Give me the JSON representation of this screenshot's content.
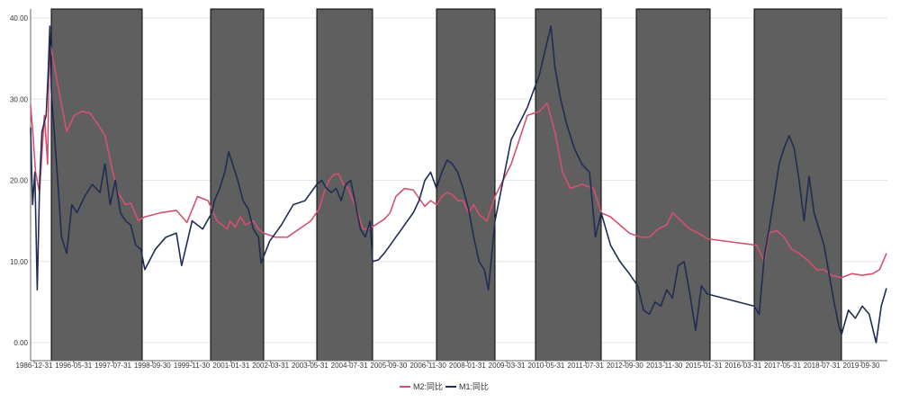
{
  "chart_data": {
    "type": "line",
    "title": "",
    "xlabel": "",
    "ylabel": "",
    "ylim": [
      0,
      40
    ],
    "yticks": [
      "0.00",
      "10.00",
      "20.00",
      "30.00",
      "40.00"
    ],
    "xticks": [
      "1986-12-31",
      "1996-05-31",
      "1997-07-31",
      "1998-09-30",
      "1999-11-30",
      "2001-01-31",
      "2002-03-31",
      "2003-05-31",
      "2004-07-31",
      "2005-09-30",
      "2006-11-30",
      "2008-01-31",
      "2009-03-31",
      "2010-05-31",
      "2011-07-31",
      "2012-09-30",
      "2013-11-30",
      "2015-01-31",
      "2016-03-31",
      "2017-05-31",
      "2018-07-31",
      "2019-09-30"
    ],
    "grid": true,
    "legend_position": "bottom",
    "shaded_periods": [
      {
        "start": 1995.3,
        "end": 1998.85
      },
      {
        "start": 2000.15,
        "end": 2002.2
      },
      {
        "start": 2003.1,
        "end": 2005.4
      },
      {
        "start": 2007.6,
        "end": 2009.8
      },
      {
        "start": 2010.3,
        "end": 2012.0
      },
      {
        "start": 2012.75,
        "end": 2015.3
      },
      {
        "start": 2015.4,
        "end": 2018.9
      }
    ],
    "series": [
      {
        "name": "M2:同比",
        "color": "#d4516e",
        "points": [
          [
            1986.9,
            29.3
          ],
          [
            1987.9,
            25.5
          ],
          [
            1988.9,
            21.0
          ],
          [
            1990.5,
            18.5
          ],
          [
            1992.5,
            28.0
          ],
          [
            1993.8,
            22.0
          ],
          [
            1994.4,
            34.0
          ],
          [
            1994.7,
            37.0
          ],
          [
            1995.3,
            36.0
          ],
          [
            1995.6,
            31.0
          ],
          [
            1995.9,
            26.0
          ],
          [
            1996.2,
            28.0
          ],
          [
            1996.5,
            28.5
          ],
          [
            1996.8,
            28.3
          ],
          [
            1997.1,
            27.0
          ],
          [
            1997.4,
            25.5
          ],
          [
            1997.7,
            21.0
          ],
          [
            1997.9,
            18.5
          ],
          [
            1998.2,
            17.0
          ],
          [
            1998.4,
            17.2
          ],
          [
            1998.7,
            15.0
          ],
          [
            1998.9,
            15.5
          ],
          [
            1999.2,
            16.0
          ],
          [
            1999.5,
            16.3
          ],
          [
            1999.7,
            14.8
          ],
          [
            1999.9,
            18.0
          ],
          [
            2000.1,
            17.5
          ],
          [
            2000.4,
            15.0
          ],
          [
            2000.6,
            14.5
          ],
          [
            2000.8,
            14.0
          ],
          [
            2000.9,
            15.0
          ],
          [
            2001.1,
            14.2
          ],
          [
            2001.3,
            15.5
          ],
          [
            2001.5,
            14.5
          ],
          [
            2001.8,
            15.0
          ],
          [
            2002.0,
            14.0
          ],
          [
            2002.2,
            13.5
          ],
          [
            2002.4,
            13.0
          ],
          [
            2002.6,
            13.0
          ],
          [
            2002.8,
            14.0
          ],
          [
            2003.0,
            15.0
          ],
          [
            2003.2,
            16.5
          ],
          [
            2003.4,
            18.5
          ],
          [
            2003.6,
            20.0
          ],
          [
            2003.8,
            20.7
          ],
          [
            2004.0,
            20.8
          ],
          [
            2004.2,
            19.5
          ],
          [
            2004.4,
            19.0
          ],
          [
            2004.6,
            17.5
          ],
          [
            2004.8,
            16.0
          ],
          [
            2005.0,
            14.0
          ],
          [
            2005.2,
            14.0
          ],
          [
            2005.5,
            14.5
          ],
          [
            2005.8,
            15.2
          ],
          [
            2006.0,
            16.0
          ],
          [
            2006.2,
            18.0
          ],
          [
            2006.5,
            19.0
          ],
          [
            2006.8,
            18.8
          ],
          [
            2007.0,
            17.8
          ],
          [
            2007.2,
            16.8
          ],
          [
            2007.4,
            17.5
          ],
          [
            2007.6,
            17.0
          ],
          [
            2007.8,
            18.0
          ],
          [
            2008.0,
            18.5
          ],
          [
            2008.2,
            18.2
          ],
          [
            2008.4,
            17.5
          ],
          [
            2008.6,
            17.5
          ],
          [
            2008.8,
            16.0
          ],
          [
            2009.0,
            17.0
          ],
          [
            2009.2,
            15.8
          ],
          [
            2009.5,
            15.0
          ],
          [
            2009.8,
            18.0
          ],
          [
            2010.0,
            22.0
          ],
          [
            2010.2,
            28.0
          ],
          [
            2010.4,
            28.5
          ],
          [
            2010.6,
            29.5
          ],
          [
            2010.8,
            26.0
          ],
          [
            2011.0,
            21.0
          ],
          [
            2011.2,
            19.0
          ],
          [
            2011.5,
            19.5
          ],
          [
            2011.8,
            19.0
          ],
          [
            2012.0,
            16.0
          ],
          [
            2012.2,
            15.5
          ],
          [
            2012.4,
            14.5
          ],
          [
            2012.6,
            13.5
          ],
          [
            2012.9,
            13.0
          ],
          [
            2013.2,
            13.0
          ],
          [
            2013.5,
            14.0
          ],
          [
            2013.8,
            14.5
          ],
          [
            2014.0,
            16.0
          ],
          [
            2014.3,
            15.0
          ],
          [
            2014.6,
            14.0
          ],
          [
            2014.9,
            13.5
          ],
          [
            2015.2,
            12.8
          ],
          [
            2015.5,
            12.0
          ],
          [
            2015.8,
            10.0
          ],
          [
            2016.0,
            13.5
          ],
          [
            2016.3,
            13.8
          ],
          [
            2016.6,
            13.0
          ],
          [
            2016.9,
            11.5
          ],
          [
            2017.2,
            11.0
          ],
          [
            2017.6,
            10.0
          ],
          [
            2017.9,
            9.0
          ],
          [
            2018.2,
            9.0
          ],
          [
            2018.5,
            8.3
          ],
          [
            2018.9,
            8.0
          ],
          [
            2019.2,
            8.5
          ],
          [
            2019.5,
            8.3
          ],
          [
            2019.8,
            8.5
          ],
          [
            2020.0,
            9.0
          ],
          [
            2020.2,
            11.0
          ]
        ]
      },
      {
        "name": "M1:同比",
        "color": "#1f2d55",
        "points": [
          [
            1986.9,
            26.5
          ],
          [
            1987.7,
            17.0
          ],
          [
            1988.6,
            21.0
          ],
          [
            1989.6,
            6.5
          ],
          [
            1990.6,
            20.0
          ],
          [
            1991.5,
            26.0
          ],
          [
            1993.2,
            28.0
          ],
          [
            1994.0,
            33.0
          ],
          [
            1994.7,
            39.0
          ],
          [
            1995.0,
            34.0
          ],
          [
            1995.3,
            31.0
          ],
          [
            1995.55,
            20.0
          ],
          [
            1995.7,
            13.0
          ],
          [
            1995.9,
            11.0
          ],
          [
            1996.1,
            17.0
          ],
          [
            1996.3,
            16.0
          ],
          [
            1996.6,
            18.0
          ],
          [
            1996.9,
            19.5
          ],
          [
            1997.2,
            18.5
          ],
          [
            1997.4,
            22.0
          ],
          [
            1997.6,
            17.0
          ],
          [
            1997.8,
            20.0
          ],
          [
            1998.0,
            16.0
          ],
          [
            1998.2,
            15.0
          ],
          [
            1998.4,
            14.5
          ],
          [
            1998.6,
            12.0
          ],
          [
            1998.8,
            11.5
          ],
          [
            1998.9,
            9.0
          ],
          [
            1999.1,
            11.5
          ],
          [
            1999.3,
            13.0
          ],
          [
            1999.5,
            13.5
          ],
          [
            1999.6,
            9.5
          ],
          [
            1999.8,
            15.0
          ],
          [
            2000.0,
            14.0
          ],
          [
            2000.2,
            16.0
          ],
          [
            2000.3,
            17.5
          ],
          [
            2000.5,
            19.0
          ],
          [
            2000.7,
            21.0
          ],
          [
            2000.85,
            23.5
          ],
          [
            2001.0,
            22.0
          ],
          [
            2001.2,
            20.0
          ],
          [
            2001.4,
            17.5
          ],
          [
            2001.6,
            16.5
          ],
          [
            2001.8,
            14.0
          ],
          [
            2002.0,
            13.0
          ],
          [
            2002.1,
            9.8
          ],
          [
            2002.3,
            12.5
          ],
          [
            2002.5,
            14.5
          ],
          [
            2002.7,
            17.0
          ],
          [
            2002.9,
            17.5
          ],
          [
            2003.1,
            19.5
          ],
          [
            2003.3,
            20.0
          ],
          [
            2003.5,
            19.0
          ],
          [
            2003.7,
            18.5
          ],
          [
            2003.9,
            19.0
          ],
          [
            2004.1,
            17.5
          ],
          [
            2004.3,
            19.5
          ],
          [
            2004.5,
            20.0
          ],
          [
            2004.7,
            17.0
          ],
          [
            2004.9,
            14.0
          ],
          [
            2005.1,
            13.0
          ],
          [
            2005.3,
            15.0
          ],
          [
            2005.4,
            10.0
          ],
          [
            2005.6,
            10.2
          ],
          [
            2005.8,
            11.0
          ],
          [
            2006.0,
            12.0
          ],
          [
            2006.2,
            13.0
          ],
          [
            2006.4,
            14.0
          ],
          [
            2006.6,
            15.0
          ],
          [
            2006.8,
            16.0
          ],
          [
            2007.0,
            17.5
          ],
          [
            2007.2,
            20.0
          ],
          [
            2007.4,
            21.0
          ],
          [
            2007.6,
            19.0
          ],
          [
            2007.8,
            21.0
          ],
          [
            2008.0,
            22.5
          ],
          [
            2008.2,
            22.0
          ],
          [
            2008.4,
            21.0
          ],
          [
            2008.6,
            19.0
          ],
          [
            2008.8,
            16.5
          ],
          [
            2009.0,
            13.0
          ],
          [
            2009.2,
            10.0
          ],
          [
            2009.4,
            9.0
          ],
          [
            2009.55,
            6.5
          ],
          [
            2009.8,
            15.0
          ],
          [
            2010.0,
            25.0
          ],
          [
            2010.2,
            29.0
          ],
          [
            2010.4,
            33.0
          ],
          [
            2010.55,
            36.0
          ],
          [
            2010.7,
            39.0
          ],
          [
            2010.8,
            34.0
          ],
          [
            2010.95,
            30.0
          ],
          [
            2011.1,
            27.0
          ],
          [
            2011.3,
            24.0
          ],
          [
            2011.5,
            22.0
          ],
          [
            2011.7,
            21.0
          ],
          [
            2011.85,
            13.0
          ],
          [
            2012.0,
            16.0
          ],
          [
            2012.2,
            12.0
          ],
          [
            2012.4,
            10.0
          ],
          [
            2012.6,
            8.5
          ],
          [
            2012.8,
            7.0
          ],
          [
            2013.0,
            4.0
          ],
          [
            2013.2,
            3.5
          ],
          [
            2013.4,
            5.0
          ],
          [
            2013.6,
            4.5
          ],
          [
            2013.8,
            6.5
          ],
          [
            2014.0,
            5.5
          ],
          [
            2014.2,
            9.5
          ],
          [
            2014.4,
            10.0
          ],
          [
            2014.6,
            6.0
          ],
          [
            2014.8,
            1.5
          ],
          [
            2015.0,
            7.0
          ],
          [
            2015.2,
            6.0
          ],
          [
            2015.4,
            4.5
          ],
          [
            2015.6,
            3.5
          ],
          [
            2015.8,
            10.5
          ],
          [
            2016.0,
            14.0
          ],
          [
            2016.2,
            18.0
          ],
          [
            2016.4,
            22.0
          ],
          [
            2016.6,
            24.0
          ],
          [
            2016.8,
            25.5
          ],
          [
            2017.0,
            24.0
          ],
          [
            2017.2,
            20.0
          ],
          [
            2017.4,
            15.0
          ],
          [
            2017.6,
            20.5
          ],
          [
            2017.8,
            16.0
          ],
          [
            2018.0,
            14.0
          ],
          [
            2018.2,
            12.0
          ],
          [
            2018.4,
            8.5
          ],
          [
            2018.6,
            5.0
          ],
          [
            2018.8,
            2.0
          ],
          [
            2018.9,
            1.0
          ],
          [
            2019.1,
            4.0
          ],
          [
            2019.3,
            3.0
          ],
          [
            2019.5,
            4.5
          ],
          [
            2019.7,
            3.5
          ],
          [
            2019.9,
            0.0
          ],
          [
            2020.05,
            4.5
          ],
          [
            2020.2,
            6.7
          ]
        ]
      }
    ]
  }
}
